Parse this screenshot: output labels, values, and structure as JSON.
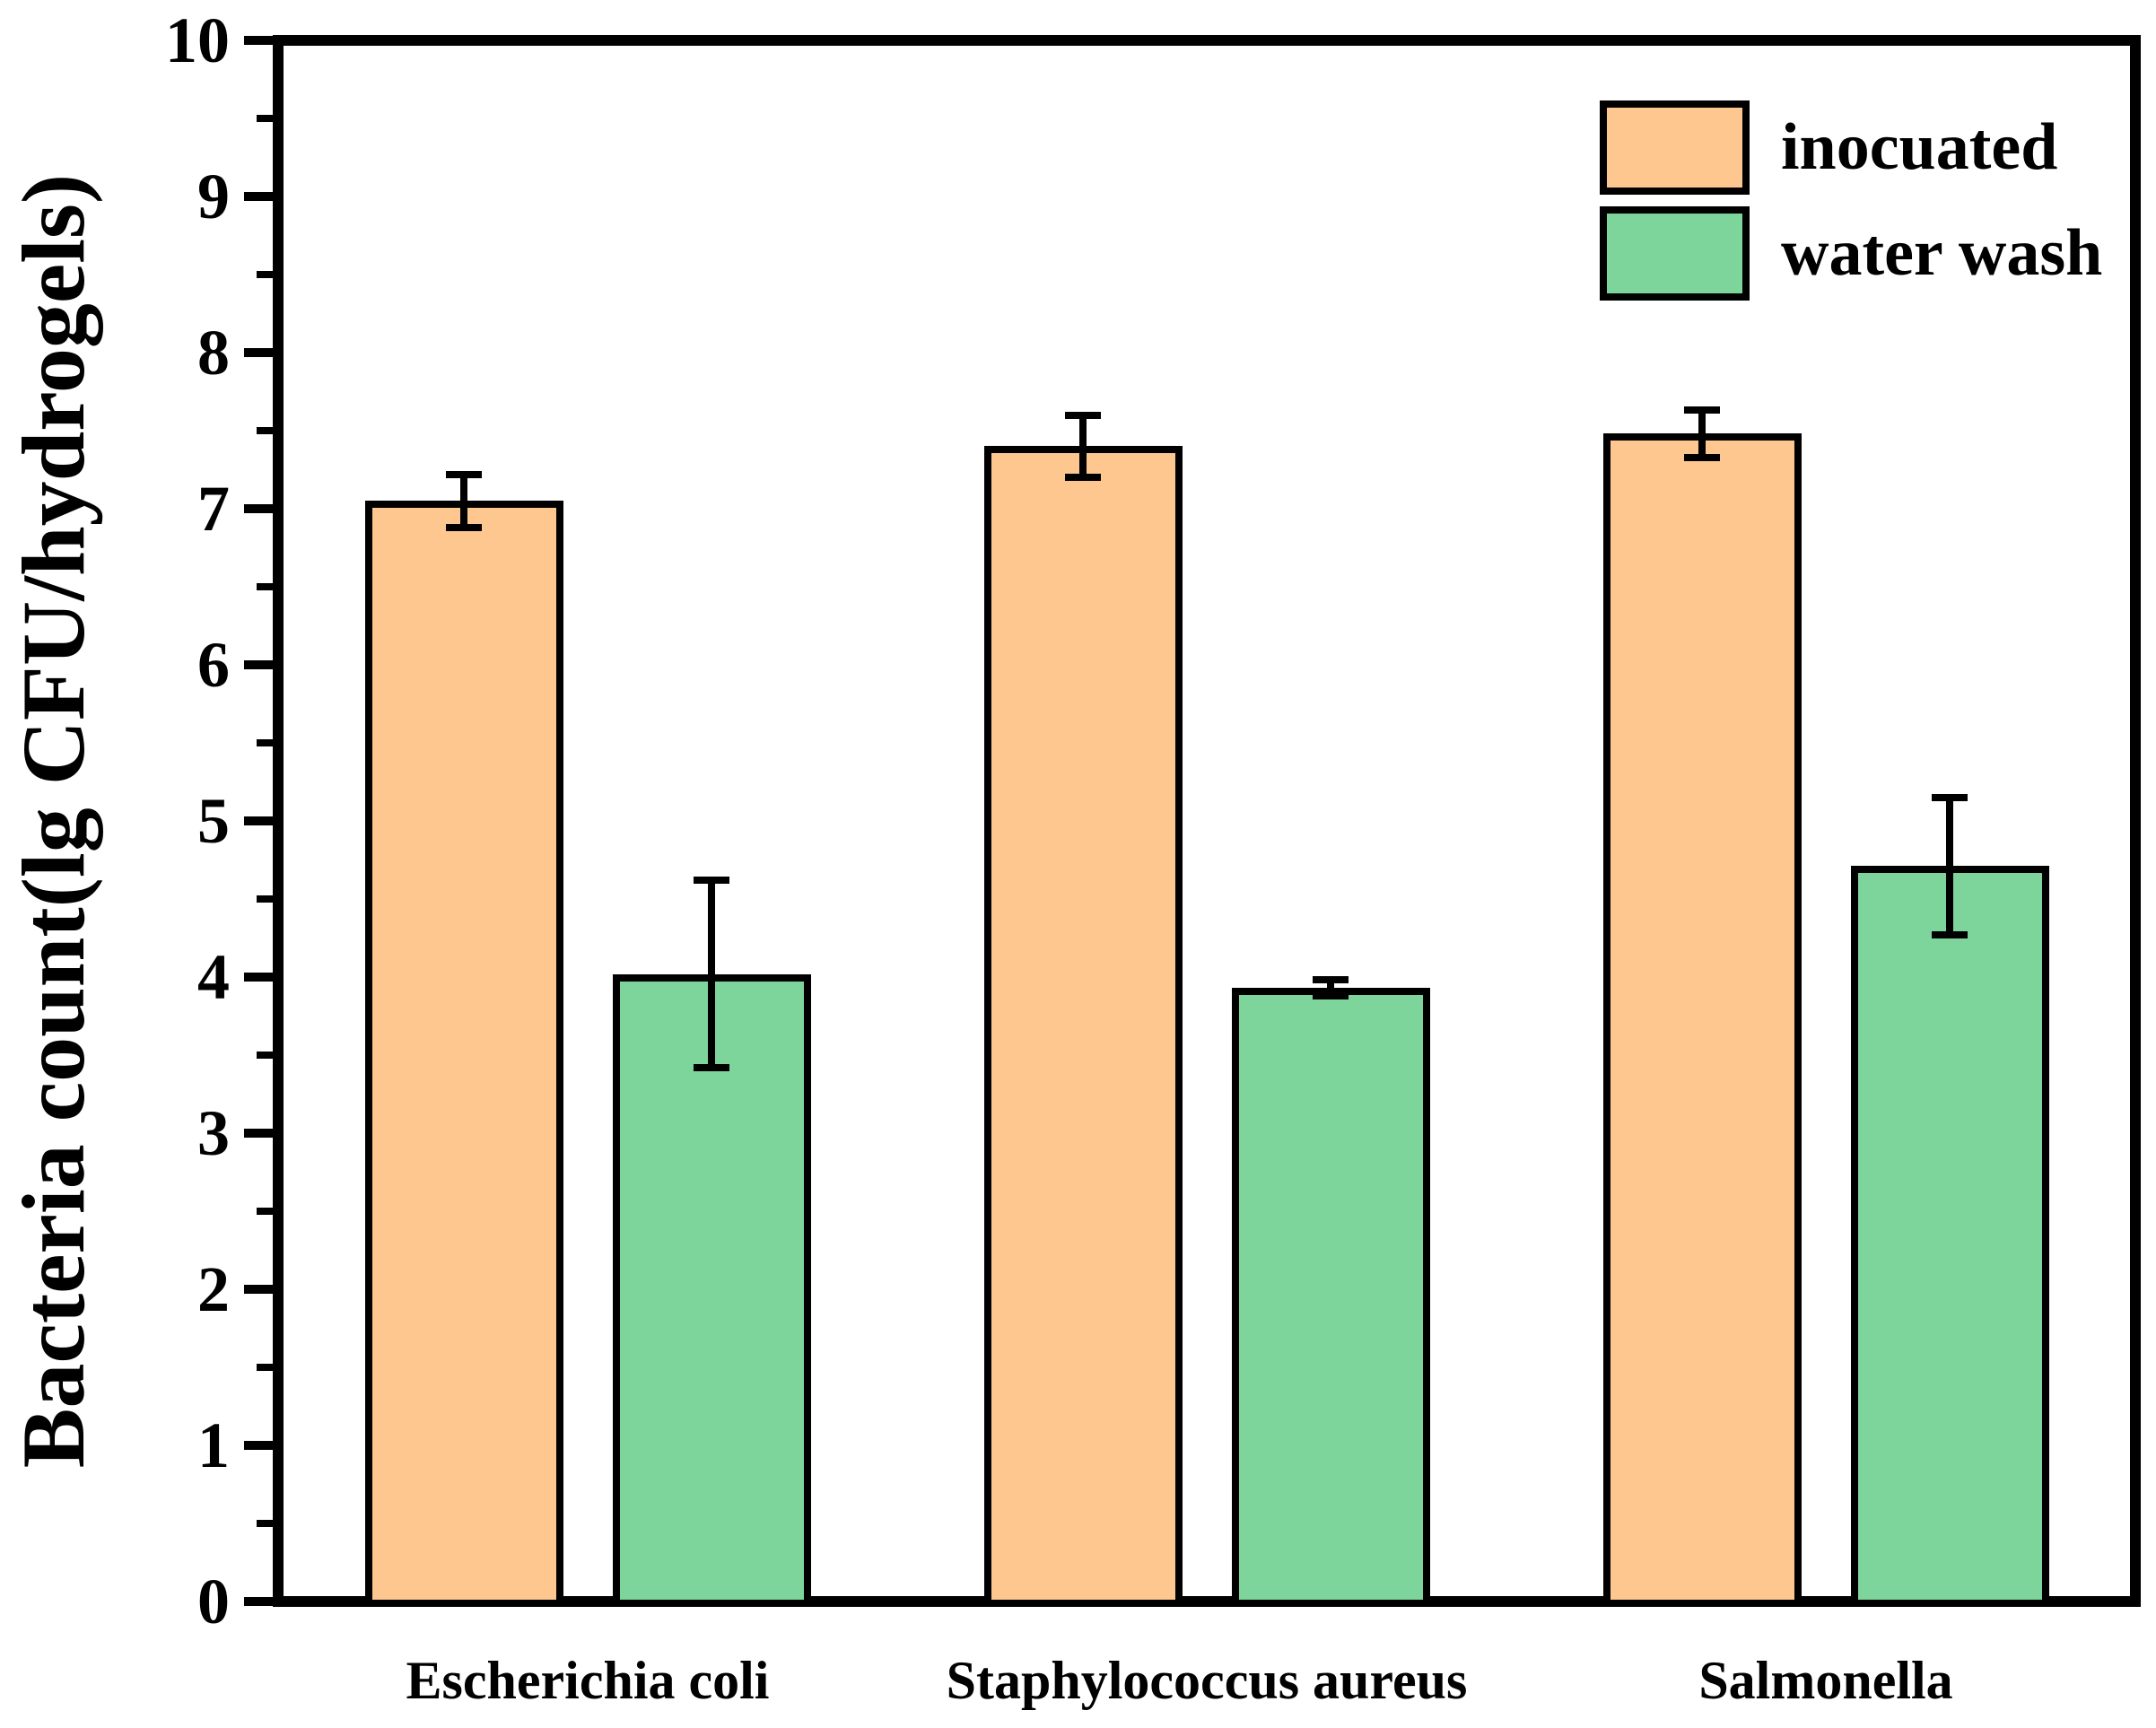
{
  "chart_data": {
    "type": "bar",
    "title": "",
    "xlabel": "",
    "ylabel": "Bacteria count(lg CFU/hydrogels)",
    "ylim": [
      0,
      10
    ],
    "yticks": [
      "0",
      "1",
      "2",
      "3",
      "4",
      "5",
      "6",
      "7",
      "8",
      "9",
      "10"
    ],
    "minor_tick_interval": 0.5,
    "grid": false,
    "legend_position": "top-right-inside",
    "categories": [
      "Escherichia coli",
      "Staphylococcus aureus",
      "Salmonella"
    ],
    "series": [
      {
        "name": "inocuated",
        "color": "#FDC78F",
        "values": [
          7.05,
          7.4,
          7.48
        ],
        "errors": [
          0.17,
          0.2,
          0.15
        ]
      },
      {
        "name": "water wash",
        "color": "#7DD59B",
        "values": [
          4.02,
          3.93,
          4.71
        ],
        "errors": [
          0.6,
          0.05,
          0.44
        ]
      }
    ],
    "colors": {
      "axis": "#000000",
      "bar_border": "#000000",
      "error_bar": "#000000",
      "background": "#FFFFFF"
    }
  }
}
